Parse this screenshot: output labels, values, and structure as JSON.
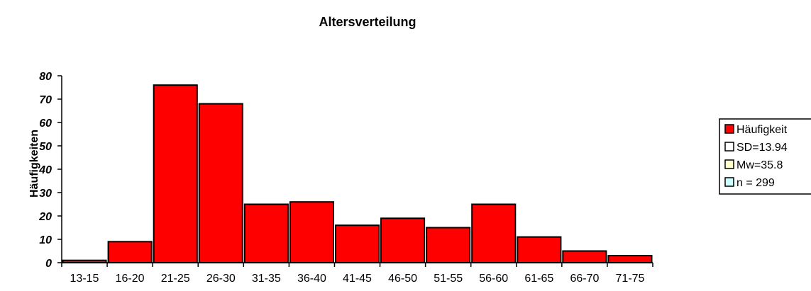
{
  "chart_data": {
    "type": "bar",
    "title": "Altersverteilung",
    "xlabel": "",
    "ylabel": "Häufigkeiten",
    "categories": [
      "13-15",
      "16-20",
      "21-25",
      "26-30",
      "31-35",
      "36-40",
      "41-45",
      "46-50",
      "51-55",
      "56-60",
      "61-65",
      "66-70",
      "71-75"
    ],
    "series": [
      {
        "name": "Häufigkeit",
        "values": [
          1,
          9,
          76,
          68,
          25,
          26,
          16,
          19,
          15,
          25,
          11,
          5,
          3
        ],
        "color": "#ff0000"
      }
    ],
    "ylim": [
      0,
      80
    ],
    "yticks": [
      0,
      10,
      20,
      30,
      40,
      50,
      60,
      70,
      80
    ],
    "grid": false,
    "legend_position": "right",
    "legend": [
      {
        "label": "Häufigkeit",
        "color": "#ff0000"
      },
      {
        "label": "SD=13.94",
        "color": "#ffffff"
      },
      {
        "label": "Mw=35.8",
        "color": "#ffffcc"
      },
      {
        "label": "n = 299",
        "color": "#ccffff"
      }
    ]
  }
}
